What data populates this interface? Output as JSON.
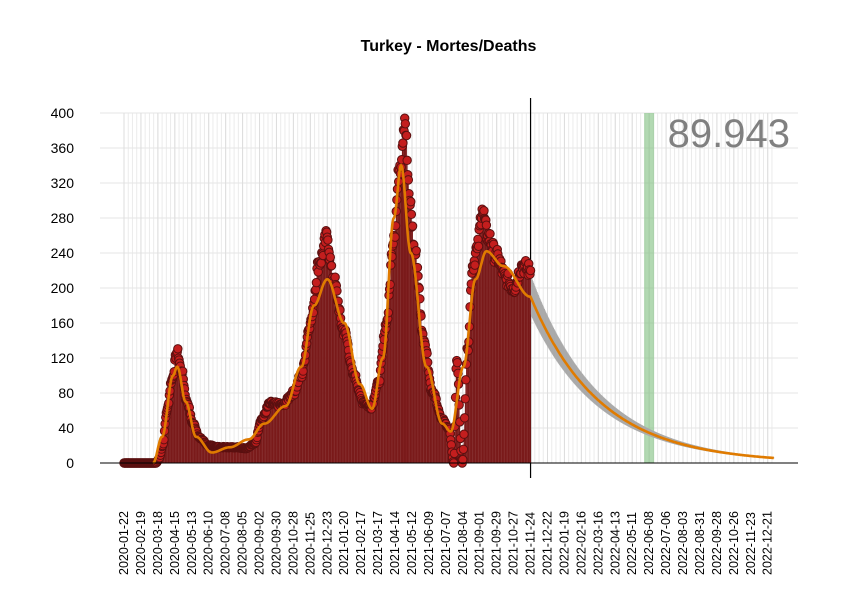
{
  "chart_data": {
    "type": "scatter",
    "title": "Turkey - Mortes/Deaths",
    "xlabel": "",
    "ylabel": "",
    "ylim": [
      0,
      400
    ],
    "y_ticks": [
      0,
      40,
      80,
      120,
      160,
      200,
      240,
      280,
      320,
      360,
      400
    ],
    "x_range": [
      "2020-01-22",
      "2022-12-31"
    ],
    "x_tick_labels": [
      "2020-01-22",
      "2020-02-19",
      "2020-03-18",
      "2020-04-15",
      "2020-05-13",
      "2020-06-10",
      "2020-07-08",
      "2020-08-05",
      "2020-09-02",
      "2020-09-30",
      "2020-10-28",
      "2020-11-25",
      "2020-12-23",
      "2021-01-20",
      "2021-02-17",
      "2021-03-17",
      "2021-04-14",
      "2021-05-12",
      "2021-06-09",
      "2021-07-07",
      "2021-08-04",
      "2021-09-01",
      "2021-09-29",
      "2021-10-27",
      "2021-11-24",
      "2021-12-22",
      "2022-01-19",
      "2022-02-16",
      "2022-03-16",
      "2022-04-13",
      "2022-05-11",
      "2022-06-08",
      "2022-07-06",
      "2022-08-03",
      "2022-08-31",
      "2022-09-28",
      "2022-10-26",
      "2022-11-23",
      "2022-12-21"
    ],
    "grid": true,
    "annotation_total": "89.943",
    "last_observation_date": "2021-11-24",
    "highlight_peak_date": "2021-04-30",
    "highlight_projection_date": "2022-06-08",
    "observed_daily_keypoints": [
      {
        "x": "2020-01-22",
        "y": 0
      },
      {
        "x": "2020-03-15",
        "y": 0
      },
      {
        "x": "2020-03-20",
        "y": 5
      },
      {
        "x": "2020-03-26",
        "y": 20
      },
      {
        "x": "2020-04-02",
        "y": 60
      },
      {
        "x": "2020-04-10",
        "y": 95
      },
      {
        "x": "2020-04-19",
        "y": 127
      },
      {
        "x": "2020-04-26",
        "y": 105
      },
      {
        "x": "2020-05-05",
        "y": 70
      },
      {
        "x": "2020-05-15",
        "y": 45
      },
      {
        "x": "2020-05-27",
        "y": 28
      },
      {
        "x": "2020-06-10",
        "y": 20
      },
      {
        "x": "2020-07-01",
        "y": 18
      },
      {
        "x": "2020-07-25",
        "y": 18
      },
      {
        "x": "2020-08-10",
        "y": 17
      },
      {
        "x": "2020-08-25",
        "y": 22
      },
      {
        "x": "2020-09-05",
        "y": 50
      },
      {
        "x": "2020-09-20",
        "y": 68
      },
      {
        "x": "2020-10-10",
        "y": 66
      },
      {
        "x": "2020-10-28",
        "y": 80
      },
      {
        "x": "2020-11-10",
        "y": 100
      },
      {
        "x": "2020-11-25",
        "y": 160
      },
      {
        "x": "2020-12-10",
        "y": 230
      },
      {
        "x": "2020-12-23",
        "y": 258
      },
      {
        "x": "2021-01-01",
        "y": 212
      },
      {
        "x": "2021-01-20",
        "y": 150
      },
      {
        "x": "2021-02-05",
        "y": 100
      },
      {
        "x": "2021-02-20",
        "y": 70
      },
      {
        "x": "2021-03-05",
        "y": 64
      },
      {
        "x": "2021-03-17",
        "y": 90
      },
      {
        "x": "2021-03-31",
        "y": 160
      },
      {
        "x": "2021-04-12",
        "y": 260
      },
      {
        "x": "2021-04-22",
        "y": 340
      },
      {
        "x": "2021-04-30",
        "y": 394
      },
      {
        "x": "2021-05-08",
        "y": 300
      },
      {
        "x": "2021-05-17",
        "y": 240
      },
      {
        "x": "2021-06-01",
        "y": 140
      },
      {
        "x": "2021-06-15",
        "y": 80
      },
      {
        "x": "2021-07-01",
        "y": 50
      },
      {
        "x": "2021-07-12",
        "y": 40
      },
      {
        "x": "2021-07-20",
        "y": 0
      },
      {
        "x": "2021-07-25",
        "y": 117
      },
      {
        "x": "2021-08-03",
        "y": 0
      },
      {
        "x": "2021-08-12",
        "y": 130
      },
      {
        "x": "2021-08-20",
        "y": 225
      },
      {
        "x": "2021-08-28",
        "y": 245
      },
      {
        "x": "2021-09-05",
        "y": 290
      },
      {
        "x": "2021-09-14",
        "y": 260
      },
      {
        "x": "2021-09-29",
        "y": 235
      },
      {
        "x": "2021-10-15",
        "y": 210
      },
      {
        "x": "2021-10-27",
        "y": 200
      },
      {
        "x": "2021-11-10",
        "y": 225
      },
      {
        "x": "2021-11-24",
        "y": 220
      }
    ],
    "trend_keypoints": [
      {
        "x": "2020-03-10",
        "y": 0
      },
      {
        "x": "2020-03-25",
        "y": 30
      },
      {
        "x": "2020-04-12",
        "y": 100
      },
      {
        "x": "2020-04-19",
        "y": 110
      },
      {
        "x": "2020-05-03",
        "y": 70
      },
      {
        "x": "2020-05-20",
        "y": 30
      },
      {
        "x": "2020-06-15",
        "y": 12
      },
      {
        "x": "2020-07-15",
        "y": 18
      },
      {
        "x": "2020-08-15",
        "y": 27
      },
      {
        "x": "2020-09-10",
        "y": 45
      },
      {
        "x": "2020-10-15",
        "y": 65
      },
      {
        "x": "2020-11-10",
        "y": 110
      },
      {
        "x": "2020-12-01",
        "y": 180
      },
      {
        "x": "2020-12-23",
        "y": 210
      },
      {
        "x": "2021-01-20",
        "y": 160
      },
      {
        "x": "2021-02-15",
        "y": 90
      },
      {
        "x": "2021-03-07",
        "y": 62
      },
      {
        "x": "2021-03-25",
        "y": 120
      },
      {
        "x": "2021-04-12",
        "y": 280
      },
      {
        "x": "2021-04-24",
        "y": 340
      },
      {
        "x": "2021-05-10",
        "y": 240
      },
      {
        "x": "2021-06-05",
        "y": 110
      },
      {
        "x": "2021-07-01",
        "y": 45
      },
      {
        "x": "2021-07-15",
        "y": 36
      },
      {
        "x": "2021-08-05",
        "y": 110
      },
      {
        "x": "2021-08-25",
        "y": 210
      },
      {
        "x": "2021-09-12",
        "y": 242
      },
      {
        "x": "2021-10-10",
        "y": 225
      },
      {
        "x": "2021-11-24",
        "y": 190
      }
    ],
    "projection": {
      "start": "2021-11-24",
      "end": "2022-12-31",
      "start_value": 190,
      "decay_per_day": 0.0087,
      "band_lower_start": 170,
      "band_upper_start": 215
    }
  }
}
